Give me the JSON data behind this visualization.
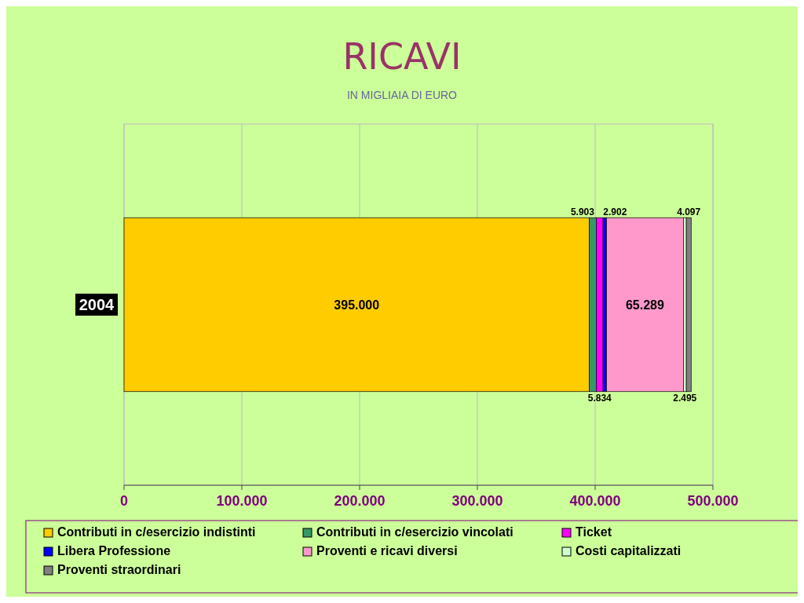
{
  "chart_data": {
    "type": "bar",
    "orientation": "horizontal",
    "stacked": true,
    "title": "RICAVI",
    "subtitle": "IN MIGLIAIA DI EURO",
    "categories": [
      "2004"
    ],
    "series": [
      {
        "name": "Contributi in c/esercizio indistinti",
        "color": "#ffcc00",
        "values": [
          395000
        ],
        "value_labels": [
          "395.000"
        ]
      },
      {
        "name": "Contributi in c/esercizio vincolati",
        "color": "#339966",
        "values": [
          5903
        ],
        "value_labels": [
          "5.903"
        ]
      },
      {
        "name": "Ticket",
        "color": "#ff00ff",
        "values": [
          5834
        ],
        "value_labels": [
          "5.834"
        ]
      },
      {
        "name": "Libera Professione",
        "color": "#0000ff",
        "values": [
          2902
        ],
        "value_labels": [
          "2.902"
        ]
      },
      {
        "name": "Proventi e ricavi diversi",
        "color": "#ff99cc",
        "values": [
          65289
        ],
        "value_labels": [
          "65.289"
        ]
      },
      {
        "name": "Costi capitalizzati",
        "color": "#ccffcc",
        "values": [
          2495
        ],
        "value_labels": [
          "2.495"
        ]
      },
      {
        "name": "Proventi straordinari",
        "color": "#808080",
        "values": [
          4097
        ],
        "value_labels": [
          "4.097"
        ]
      }
    ],
    "xlim": [
      0,
      500000
    ],
    "xticks": [
      0,
      {
        "value": 100000,
        "label": "100.000"
      },
      {
        "value": 200000,
        "label": "200.000"
      },
      {
        "value": 300000,
        "label": "300.000"
      },
      {
        "value": 400000,
        "label": "400.000"
      },
      {
        "value": 500000,
        "label": "500.000"
      }
    ],
    "grid": "x",
    "legend": "bottom"
  }
}
